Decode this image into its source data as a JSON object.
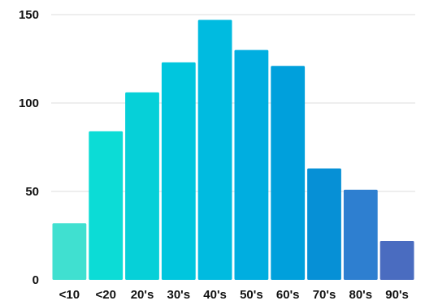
{
  "chart_data": {
    "type": "bar",
    "title": "",
    "xlabel": "",
    "ylabel": "",
    "categories": [
      "<10",
      "<20",
      "20's",
      "30's",
      "40's",
      "50's",
      "60's",
      "70's",
      "80's",
      "90's"
    ],
    "values": [
      32,
      84,
      106,
      123,
      147,
      130,
      121,
      63,
      51,
      22
    ],
    "ylim": [
      0,
      150
    ],
    "yticks": [
      0,
      50,
      100,
      150
    ],
    "grid": true,
    "colors": [
      "#40e0d0",
      "#0cdcd6",
      "#06d0d8",
      "#00c6de",
      "#00bbe0",
      "#00aee0",
      "#00a0dc",
      "#0690d6",
      "#2e7fd0",
      "#4a6cc0"
    ]
  }
}
